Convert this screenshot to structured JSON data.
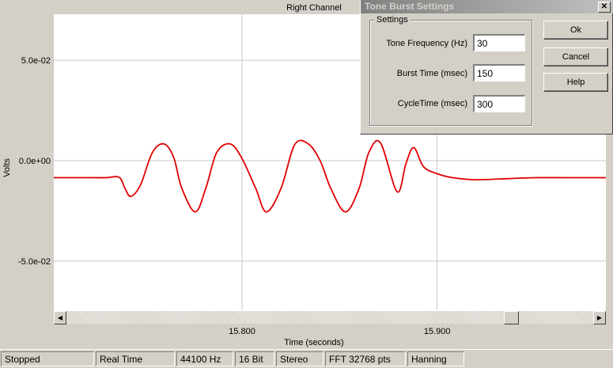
{
  "chart": {
    "title": "Right Channel",
    "y_axis_label": "Volts",
    "x_axis_label": "Time (seconds)",
    "trace_color": "#e00000",
    "background_color": "#ffffff",
    "grid_color": "#c8c8c8"
  },
  "chart_data": {
    "type": "line",
    "title": "Right Channel",
    "xlabel": "Time (seconds)",
    "ylabel": "Volts",
    "xlim": [
      15.7035,
      15.9865
    ],
    "ylim": [
      -0.0745,
      0.0729
    ],
    "x_ticks": [
      15.8,
      15.9
    ],
    "x_tick_labels": [
      "15.800",
      "15.900"
    ],
    "y_ticks": [
      0.05,
      0.0,
      -0.05
    ],
    "y_tick_labels": [
      "5.0e-02",
      "0.0e+00",
      "-5.0e-02"
    ],
    "grid": true,
    "series": [
      {
        "color": "#e00000",
        "x": [
          15.7035,
          15.71,
          15.72,
          15.73,
          15.737,
          15.74,
          15.743,
          15.748,
          15.754,
          15.76,
          15.765,
          15.769,
          15.776,
          15.7815,
          15.787,
          15.794,
          15.8,
          15.807,
          15.8125,
          15.82,
          15.827,
          15.834,
          15.84,
          15.8455,
          15.853,
          15.86,
          15.865,
          15.871,
          15.8795,
          15.884,
          15.888,
          15.893,
          15.9,
          15.908,
          15.92,
          15.935,
          15.95,
          15.965,
          15.9865
        ],
        "y": [
          -0.0085,
          -0.0085,
          -0.0085,
          -0.0085,
          -0.0083,
          -0.0138,
          -0.0178,
          -0.012,
          0.004,
          0.0083,
          0.0015,
          -0.0135,
          -0.0255,
          -0.0135,
          0.004,
          0.0083,
          0.001,
          -0.0138,
          -0.0255,
          -0.0138,
          0.008,
          0.0083,
          0.0,
          -0.0138,
          -0.0255,
          -0.0138,
          0.004,
          0.0088,
          -0.0155,
          -0.0015,
          0.0065,
          -0.003,
          -0.0065,
          -0.0085,
          -0.0095,
          -0.009,
          -0.0085,
          -0.0085,
          -0.0085
        ]
      }
    ]
  },
  "dialog": {
    "title": "Tone Burst Settings",
    "close_glyph": "✕",
    "group_label": "Settings",
    "fields": [
      {
        "label": "Tone Frequency (Hz)",
        "value": "30"
      },
      {
        "label": "Burst Time (msec)",
        "value": "150"
      },
      {
        "label": "CycleTime (msec)",
        "value": "300"
      }
    ],
    "buttons": {
      "ok": "Ok",
      "cancel": "Cancel",
      "help": "Help"
    }
  },
  "scrollbar": {
    "left_arrow": "◀",
    "right_arrow": "▶",
    "position": 0.855
  },
  "statusbar": {
    "state": "Stopped",
    "mode": "Real Time",
    "sample_rate": "44100 Hz",
    "bit_depth": "16 Bit",
    "channels": "Stereo",
    "fft": "FFT 32768 pts",
    "window": "Hanning"
  }
}
